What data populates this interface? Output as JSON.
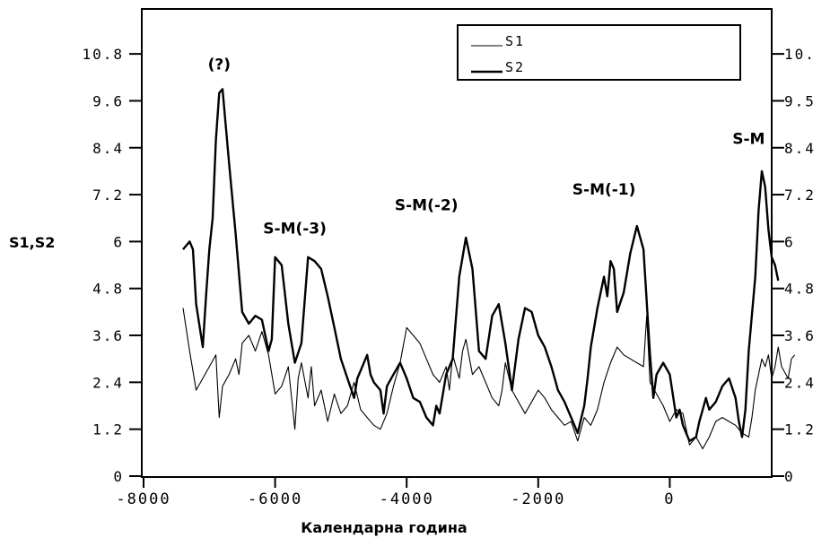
{
  "chart_data": {
    "type": "line",
    "title": "",
    "xlabel": "Календарна година",
    "ylabel": "S1,S2",
    "xlim": [
      -8000,
      2000
    ],
    "ylim": [
      0,
      12
    ],
    "x_ticks": [
      "-8000",
      "-6000",
      "-4000",
      "-2000",
      "0"
    ],
    "x_tick_values": [
      -8000,
      -6000,
      -4000,
      -2000,
      0
    ],
    "y_ticks": [
      0,
      1.2,
      2.4,
      3.6,
      4.8,
      6,
      7.2,
      8.4,
      9.6,
      10.8
    ],
    "y_ticks_left": [
      "0",
      "1.2",
      "2.4",
      "3.6",
      "4.8",
      "6",
      "7.2",
      "8.4",
      "9.6",
      "10.8"
    ],
    "y_ticks_right": [
      "0",
      "1.2",
      "2.4",
      "3.6",
      "4.8",
      "6",
      "7.2",
      "8.4",
      "9.5",
      "10."
    ],
    "grid": false,
    "legend_position": "top-right",
    "series": [
      {
        "name": "S1",
        "line_weight": "thin",
        "points": [
          [
            -7400,
            4.3
          ],
          [
            -7300,
            3.2
          ],
          [
            -7200,
            2.2
          ],
          [
            -7100,
            2.5
          ],
          [
            -7000,
            2.8
          ],
          [
            -6900,
            3.1
          ],
          [
            -6850,
            1.5
          ],
          [
            -6800,
            2.3
          ],
          [
            -6700,
            2.6
          ],
          [
            -6600,
            3.0
          ],
          [
            -6550,
            2.6
          ],
          [
            -6500,
            3.4
          ],
          [
            -6400,
            3.6
          ],
          [
            -6300,
            3.2
          ],
          [
            -6200,
            3.7
          ],
          [
            -6100,
            3.1
          ],
          [
            -6000,
            2.1
          ],
          [
            -5900,
            2.3
          ],
          [
            -5800,
            2.8
          ],
          [
            -5700,
            1.2
          ],
          [
            -5650,
            2.5
          ],
          [
            -5600,
            2.9
          ],
          [
            -5500,
            2.0
          ],
          [
            -5450,
            2.8
          ],
          [
            -5400,
            1.8
          ],
          [
            -5300,
            2.2
          ],
          [
            -5200,
            1.4
          ],
          [
            -5100,
            2.1
          ],
          [
            -5000,
            1.6
          ],
          [
            -4900,
            1.8
          ],
          [
            -4800,
            2.4
          ],
          [
            -4700,
            1.7
          ],
          [
            -4600,
            1.5
          ],
          [
            -4500,
            1.3
          ],
          [
            -4400,
            1.2
          ],
          [
            -4300,
            1.6
          ],
          [
            -4200,
            2.3
          ],
          [
            -4100,
            2.9
          ],
          [
            -4000,
            3.8
          ],
          [
            -3900,
            3.6
          ],
          [
            -3800,
            3.4
          ],
          [
            -3700,
            3.0
          ],
          [
            -3600,
            2.6
          ],
          [
            -3500,
            2.4
          ],
          [
            -3400,
            2.8
          ],
          [
            -3350,
            2.2
          ],
          [
            -3300,
            3.1
          ],
          [
            -3200,
            2.5
          ],
          [
            -3150,
            3.2
          ],
          [
            -3100,
            3.5
          ],
          [
            -3000,
            2.6
          ],
          [
            -2900,
            2.8
          ],
          [
            -2800,
            2.4
          ],
          [
            -2700,
            2.0
          ],
          [
            -2600,
            1.8
          ],
          [
            -2550,
            2.2
          ],
          [
            -2500,
            2.9
          ],
          [
            -2400,
            2.2
          ],
          [
            -2300,
            1.9
          ],
          [
            -2200,
            1.6
          ],
          [
            -2100,
            1.9
          ],
          [
            -2000,
            2.2
          ],
          [
            -1900,
            2.0
          ],
          [
            -1800,
            1.7
          ],
          [
            -1700,
            1.5
          ],
          [
            -1600,
            1.3
          ],
          [
            -1500,
            1.4
          ],
          [
            -1400,
            0.9
          ],
          [
            -1300,
            1.5
          ],
          [
            -1200,
            1.3
          ],
          [
            -1100,
            1.7
          ],
          [
            -1000,
            2.4
          ],
          [
            -900,
            2.9
          ],
          [
            -800,
            3.3
          ],
          [
            -700,
            3.1
          ],
          [
            -600,
            3.0
          ],
          [
            -500,
            2.9
          ],
          [
            -400,
            2.8
          ],
          [
            -350,
            4.1
          ],
          [
            -300,
            2.4
          ],
          [
            -200,
            2.1
          ],
          [
            -100,
            1.8
          ],
          [
            0,
            1.4
          ],
          [
            100,
            1.7
          ],
          [
            200,
            1.6
          ],
          [
            300,
            0.8
          ],
          [
            400,
            1.0
          ],
          [
            500,
            0.7
          ],
          [
            600,
            1.0
          ],
          [
            700,
            1.4
          ],
          [
            800,
            1.5
          ],
          [
            900,
            1.4
          ],
          [
            1000,
            1.3
          ],
          [
            1100,
            1.1
          ],
          [
            1200,
            1.0
          ],
          [
            1250,
            1.5
          ],
          [
            1300,
            2.2
          ],
          [
            1400,
            3.0
          ],
          [
            1450,
            2.8
          ],
          [
            1500,
            3.1
          ],
          [
            1550,
            2.5
          ],
          [
            1600,
            2.8
          ],
          [
            1650,
            3.3
          ],
          [
            1700,
            2.8
          ],
          [
            1800,
            2.5
          ],
          [
            1850,
            3.0
          ],
          [
            1900,
            3.1
          ]
        ]
      },
      {
        "name": "S2",
        "line_weight": "thick",
        "points": [
          [
            -7400,
            5.8
          ],
          [
            -7300,
            6.0
          ],
          [
            -7250,
            5.8
          ],
          [
            -7200,
            4.4
          ],
          [
            -7100,
            3.3
          ],
          [
            -7050,
            4.6
          ],
          [
            -7000,
            5.8
          ],
          [
            -6950,
            6.6
          ],
          [
            -6900,
            8.6
          ],
          [
            -6850,
            9.8
          ],
          [
            -6800,
            9.9
          ],
          [
            -6700,
            8.0
          ],
          [
            -6600,
            6.2
          ],
          [
            -6500,
            4.2
          ],
          [
            -6400,
            3.9
          ],
          [
            -6300,
            4.1
          ],
          [
            -6200,
            4.0
          ],
          [
            -6100,
            3.2
          ],
          [
            -6050,
            3.5
          ],
          [
            -6000,
            5.6
          ],
          [
            -5900,
            5.4
          ],
          [
            -5800,
            3.9
          ],
          [
            -5700,
            2.9
          ],
          [
            -5600,
            3.4
          ],
          [
            -5500,
            5.6
          ],
          [
            -5400,
            5.5
          ],
          [
            -5300,
            5.3
          ],
          [
            -5200,
            4.6
          ],
          [
            -5100,
            3.8
          ],
          [
            -5000,
            3.0
          ],
          [
            -4900,
            2.5
          ],
          [
            -4800,
            2.0
          ],
          [
            -4750,
            2.5
          ],
          [
            -4700,
            2.7
          ],
          [
            -4600,
            3.1
          ],
          [
            -4550,
            2.6
          ],
          [
            -4500,
            2.4
          ],
          [
            -4400,
            2.2
          ],
          [
            -4350,
            1.6
          ],
          [
            -4300,
            2.3
          ],
          [
            -4200,
            2.6
          ],
          [
            -4100,
            2.9
          ],
          [
            -4000,
            2.5
          ],
          [
            -3900,
            2.0
          ],
          [
            -3800,
            1.9
          ],
          [
            -3700,
            1.5
          ],
          [
            -3600,
            1.3
          ],
          [
            -3550,
            1.8
          ],
          [
            -3500,
            1.6
          ],
          [
            -3400,
            2.6
          ],
          [
            -3300,
            3.0
          ],
          [
            -3200,
            5.1
          ],
          [
            -3100,
            6.1
          ],
          [
            -3000,
            5.3
          ],
          [
            -2900,
            3.2
          ],
          [
            -2800,
            3.0
          ],
          [
            -2700,
            4.1
          ],
          [
            -2600,
            4.4
          ],
          [
            -2500,
            3.4
          ],
          [
            -2400,
            2.2
          ],
          [
            -2300,
            3.5
          ],
          [
            -2200,
            4.3
          ],
          [
            -2100,
            4.2
          ],
          [
            -2000,
            3.6
          ],
          [
            -1900,
            3.3
          ],
          [
            -1800,
            2.8
          ],
          [
            -1700,
            2.2
          ],
          [
            -1600,
            1.9
          ],
          [
            -1500,
            1.5
          ],
          [
            -1400,
            1.1
          ],
          [
            -1300,
            1.8
          ],
          [
            -1250,
            2.5
          ],
          [
            -1200,
            3.3
          ],
          [
            -1100,
            4.3
          ],
          [
            -1000,
            5.1
          ],
          [
            -950,
            4.6
          ],
          [
            -900,
            5.5
          ],
          [
            -850,
            5.3
          ],
          [
            -800,
            4.2
          ],
          [
            -700,
            4.7
          ],
          [
            -600,
            5.7
          ],
          [
            -500,
            6.4
          ],
          [
            -400,
            5.8
          ],
          [
            -300,
            3.1
          ],
          [
            -250,
            2.0
          ],
          [
            -200,
            2.6
          ],
          [
            -100,
            2.9
          ],
          [
            0,
            2.6
          ],
          [
            100,
            1.5
          ],
          [
            150,
            1.7
          ],
          [
            200,
            1.3
          ],
          [
            300,
            0.9
          ],
          [
            400,
            1.0
          ],
          [
            450,
            1.4
          ],
          [
            500,
            1.7
          ],
          [
            550,
            2.0
          ],
          [
            600,
            1.7
          ],
          [
            700,
            1.9
          ],
          [
            800,
            2.3
          ],
          [
            900,
            2.5
          ],
          [
            1000,
            2.0
          ],
          [
            1050,
            1.4
          ],
          [
            1100,
            1.0
          ],
          [
            1150,
            1.7
          ],
          [
            1200,
            3.2
          ],
          [
            1300,
            5.1
          ],
          [
            1350,
            6.8
          ],
          [
            1400,
            7.8
          ],
          [
            1450,
            7.4
          ],
          [
            1500,
            6.3
          ],
          [
            1550,
            5.6
          ],
          [
            1600,
            5.4
          ],
          [
            1650,
            5.0
          ]
        ]
      }
    ],
    "annotations": [
      {
        "text": "(?)",
        "x": -6850,
        "y": 10.4
      },
      {
        "text": "S-M(-3)",
        "x": -5700,
        "y": 6.2
      },
      {
        "text": "S-M(-2)",
        "x": -3700,
        "y": 6.8
      },
      {
        "text": "S-M(-1)",
        "x": -1000,
        "y": 7.2
      },
      {
        "text": "S-M",
        "x": 1200,
        "y": 8.5
      }
    ]
  }
}
